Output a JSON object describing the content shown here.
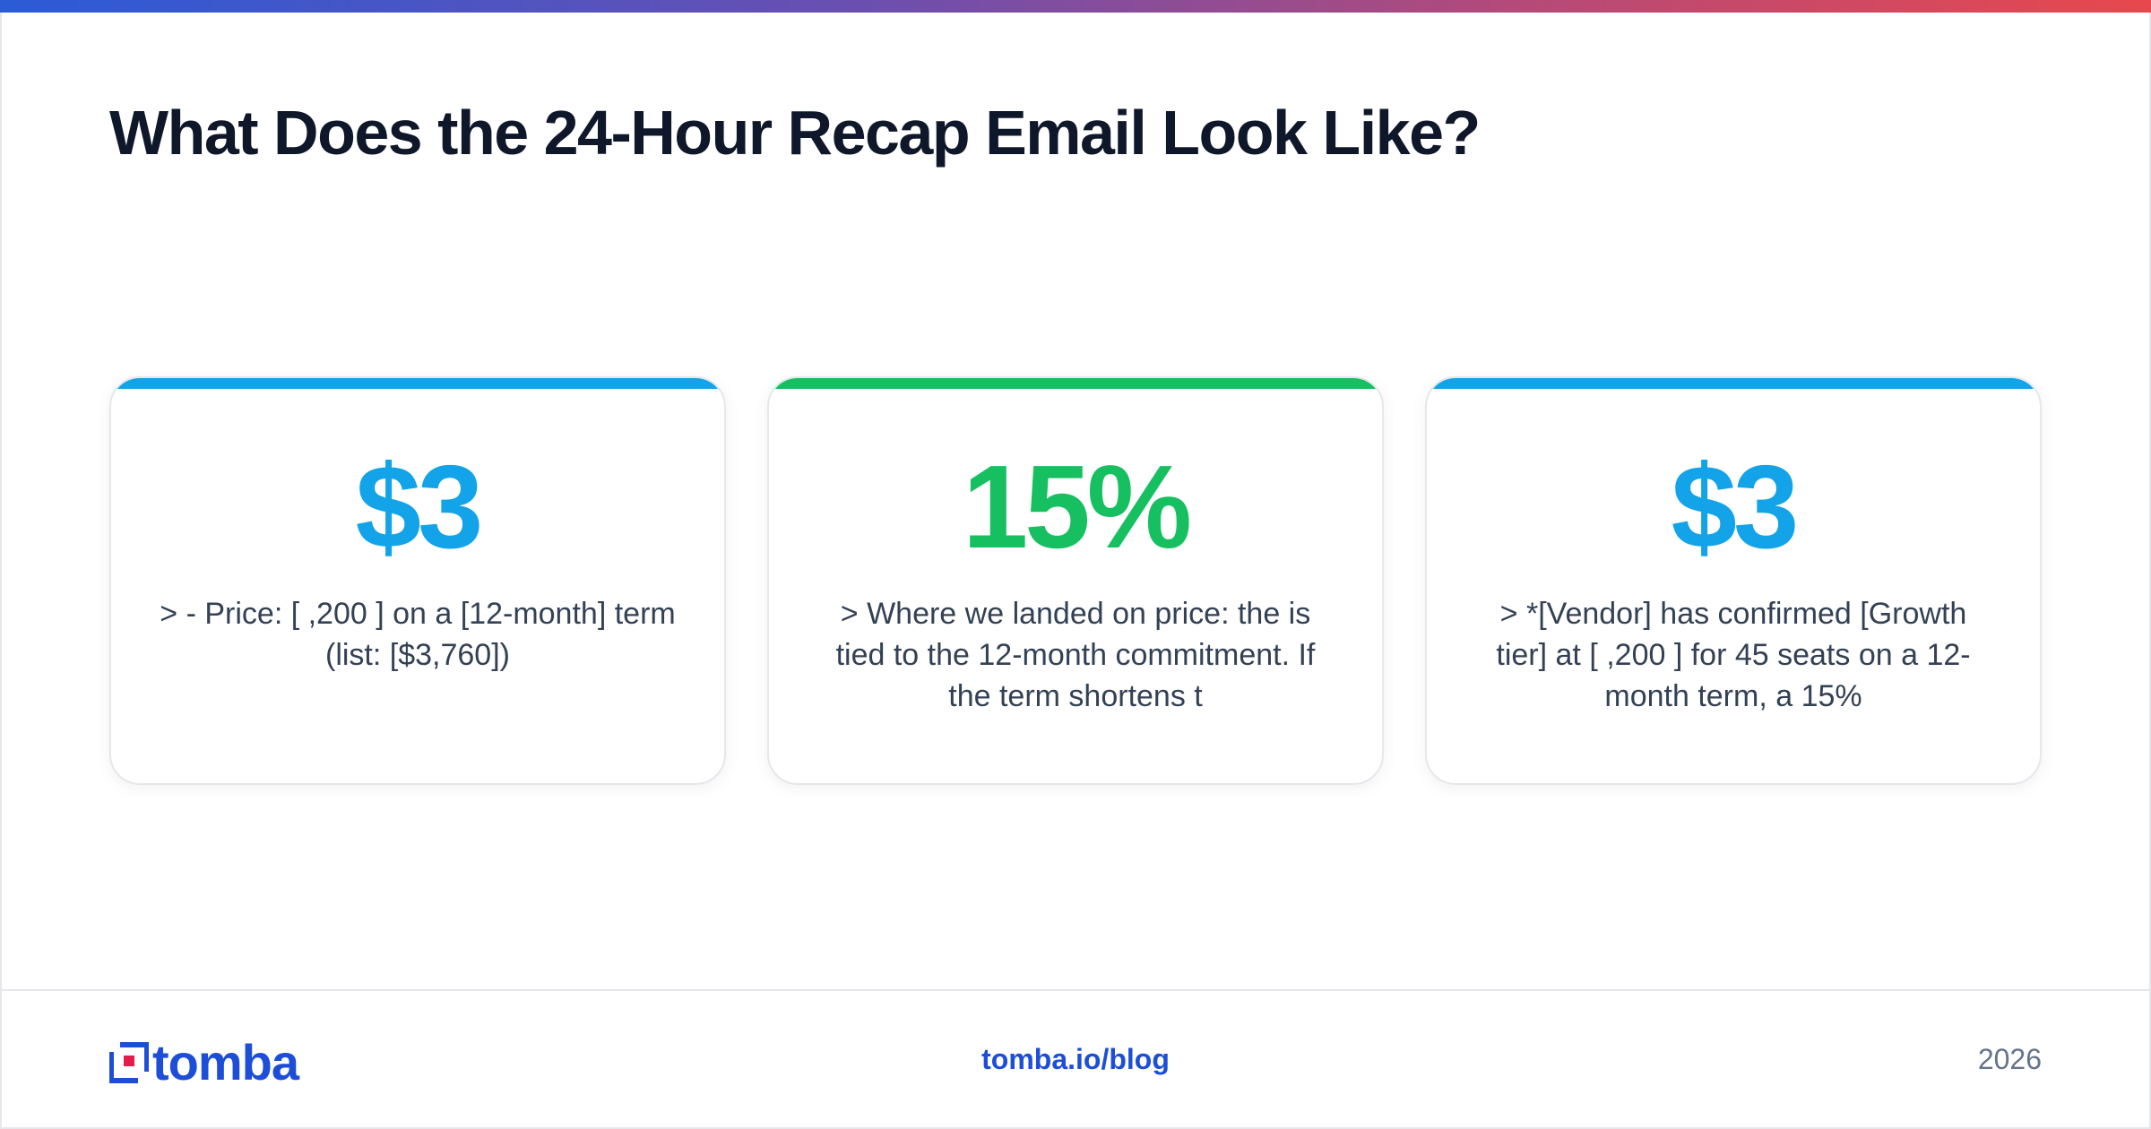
{
  "title": "What Does the 24-Hour Recap Email Look Like?",
  "colors": {
    "accent_blue": "#0ea5e9",
    "accent_green": "#16c060",
    "brand_blue": "#1d4ed8",
    "title": "#0f172a"
  },
  "cards": [
    {
      "stat": "$3",
      "desc": "> - Price: [ ,200 ] on a [12-month] term (list: [$3,760])",
      "accent": "#13a3e8",
      "stat_color": "#13a3e8"
    },
    {
      "stat": "15%",
      "desc": "> Where we landed on price: the is tied to the 12-month commitment. If the term shortens t",
      "accent": "#16c060",
      "stat_color": "#16c060"
    },
    {
      "stat": "$3",
      "desc": "> *[Vendor] has confirmed [Growth tier] at [ ,200 ] for 45 seats on a 12-month term, a 15%",
      "accent": "#13a3e8",
      "stat_color": "#13a3e8"
    }
  ],
  "footer": {
    "logo_text": "tomba",
    "link": "tomba.io/blog",
    "year": "2026"
  }
}
